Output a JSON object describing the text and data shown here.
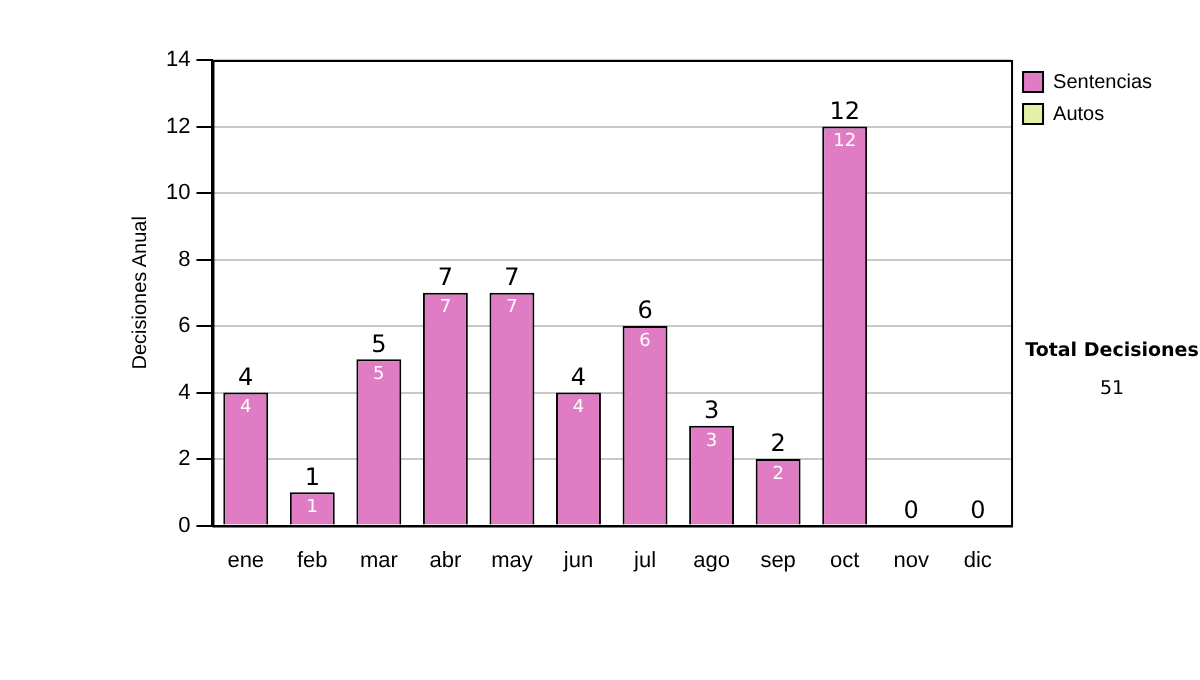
{
  "chart_data": {
    "type": "bar",
    "stacked": true,
    "ylabel": "Decisiones Anual",
    "categories": [
      "ene",
      "feb",
      "mar",
      "abr",
      "may",
      "jun",
      "jul",
      "ago",
      "sep",
      "oct",
      "nov",
      "dic"
    ],
    "series": [
      {
        "name": "Sentencias",
        "color": "#e07cc4",
        "values": [
          4,
          1,
          5,
          7,
          7,
          4,
          6,
          3,
          2,
          12,
          0,
          0
        ],
        "value_labels": [
          "4",
          "1",
          "5",
          "7",
          "7",
          "4",
          "6",
          "3",
          "2",
          "12",
          null,
          null
        ]
      },
      {
        "name": "Autos",
        "color": "#e4f0a8",
        "values": [
          0,
          0,
          0,
          0,
          0,
          0,
          0,
          0,
          0,
          0,
          0,
          0
        ]
      }
    ],
    "totals": [
      "4",
      "1",
      "5",
      "7",
      "7",
      "4",
      "6",
      "3",
      "2",
      "12",
      "0",
      "0"
    ],
    "ylim": [
      0,
      14
    ],
    "yticks": [
      0,
      2,
      4,
      6,
      8,
      10,
      12,
      14
    ],
    "grid": "y",
    "legend": "right",
    "annotations": [
      "Total Decisiones",
      "51"
    ]
  }
}
